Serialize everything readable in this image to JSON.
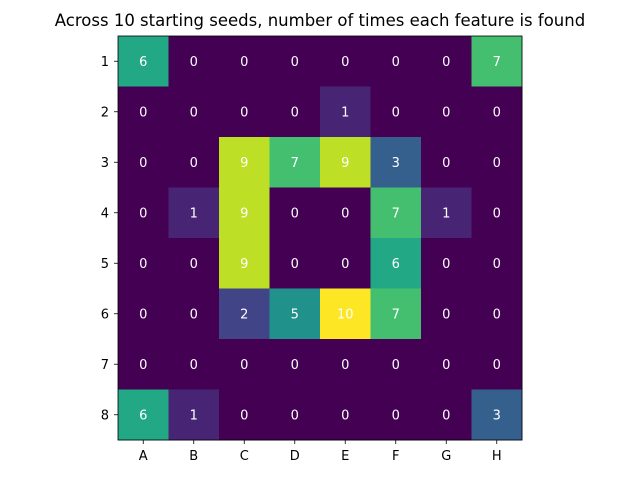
{
  "chart_data": {
    "type": "heatmap",
    "title": "Across 10 starting seeds, number of times each feature is found",
    "xlabel": "",
    "ylabel": "",
    "x_categories": [
      "A",
      "B",
      "C",
      "D",
      "E",
      "F",
      "G",
      "H"
    ],
    "y_categories": [
      "1",
      "2",
      "3",
      "4",
      "5",
      "6",
      "7",
      "8"
    ],
    "values": [
      [
        6,
        0,
        0,
        0,
        0,
        0,
        0,
        7
      ],
      [
        0,
        0,
        0,
        0,
        1,
        0,
        0,
        0
      ],
      [
        0,
        0,
        9,
        7,
        9,
        3,
        0,
        0
      ],
      [
        0,
        1,
        9,
        0,
        0,
        7,
        1,
        0
      ],
      [
        0,
        0,
        9,
        0,
        0,
        6,
        0,
        0
      ],
      [
        0,
        0,
        2,
        5,
        10,
        7,
        0,
        0
      ],
      [
        0,
        0,
        0,
        0,
        0,
        0,
        0,
        0
      ],
      [
        6,
        1,
        0,
        0,
        0,
        0,
        0,
        3
      ]
    ],
    "value_range": [
      0,
      10
    ],
    "colormap": "viridis",
    "grid": false,
    "legend": "none"
  }
}
